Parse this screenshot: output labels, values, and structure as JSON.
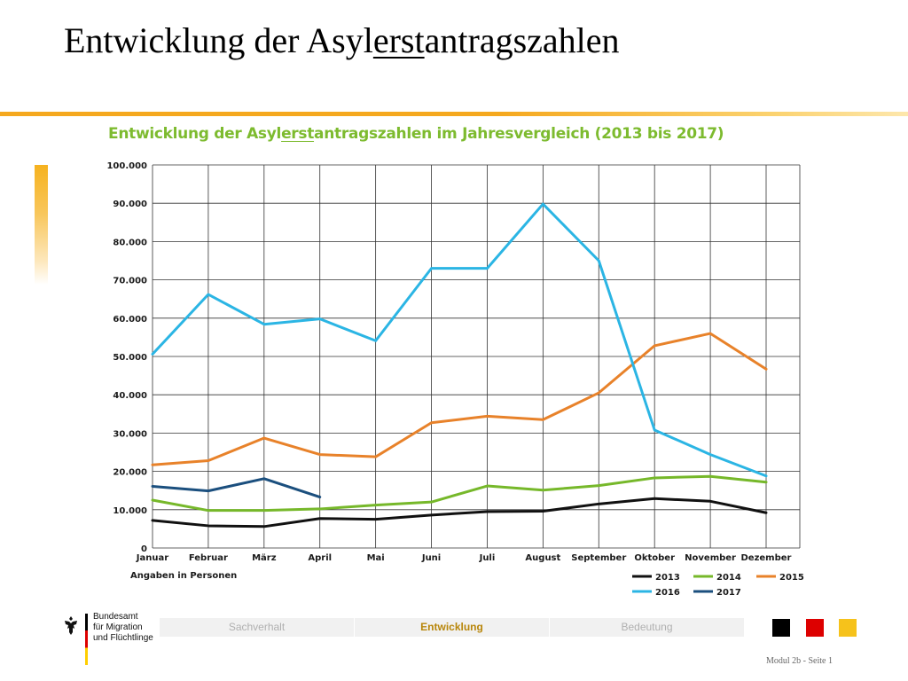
{
  "slide": {
    "title_pre": "Entwicklung der Asyl",
    "title_em": "erst",
    "title_post": "antragszahlen"
  },
  "chart_heading": {
    "pre": "Entwicklung der Asyl",
    "em": "erst",
    "post": "antragszahlen im Jahresvergleich (2013 bis 2017)"
  },
  "chart_data": {
    "type": "line",
    "title": "Entwicklung der Asylerstantragszahlen im Jahresvergleich (2013 bis 2017)",
    "xlabel": "",
    "ylabel": "",
    "note": "Angaben in Personen",
    "categories": [
      "Januar",
      "Februar",
      "März",
      "April",
      "Mai",
      "Juni",
      "Juli",
      "August",
      "September",
      "Oktober",
      "November",
      "Dezember"
    ],
    "ylim": [
      0,
      100000
    ],
    "yticks": [
      0,
      10000,
      20000,
      30000,
      40000,
      50000,
      60000,
      70000,
      80000,
      90000,
      100000
    ],
    "ytick_labels": [
      "0",
      "10.000",
      "20.000",
      "30.000",
      "40.000",
      "50.000",
      "60.000",
      "70.000",
      "80.000",
      "90.000",
      "100.000"
    ],
    "grid": true,
    "legend_position": "bottom-right",
    "series": [
      {
        "name": "2013",
        "color": "#111111",
        "values": [
          7200,
          5800,
          5600,
          7700,
          7500,
          8600,
          9500,
          9600,
          11500,
          12900,
          12200,
          9200
        ]
      },
      {
        "name": "2014",
        "color": "#76b82a",
        "values": [
          12500,
          9800,
          9800,
          10200,
          11200,
          12000,
          16200,
          15100,
          16300,
          18300,
          18700,
          17200
        ]
      },
      {
        "name": "2015",
        "color": "#e8822a",
        "values": [
          21700,
          22800,
          28700,
          24400,
          23800,
          32700,
          34400,
          33500,
          40500,
          52800,
          56000,
          46700
        ]
      },
      {
        "name": "2016",
        "color": "#2bb5e4",
        "values": [
          50600,
          66200,
          58400,
          59800,
          54100,
          73000,
          73000,
          89800,
          75000,
          30800,
          24400,
          18800
        ]
      },
      {
        "name": "2017",
        "color": "#1b4f7e",
        "values": [
          16100,
          14900,
          18100,
          13300,
          null,
          null,
          null,
          null,
          null,
          null,
          null,
          null
        ]
      }
    ]
  },
  "footer": {
    "logo_lines": [
      "Bundesamt",
      "für Migration",
      "und Flüchtlinge"
    ],
    "nav": [
      {
        "label": "Sachverhalt",
        "active": false
      },
      {
        "label": "Entwicklung",
        "active": true
      },
      {
        "label": "Bedeutung",
        "active": false
      }
    ],
    "flag_colors": [
      "#000000",
      "#dd0000",
      "#f6c21b"
    ],
    "page_info": "Modul 2b - Seite 1"
  }
}
